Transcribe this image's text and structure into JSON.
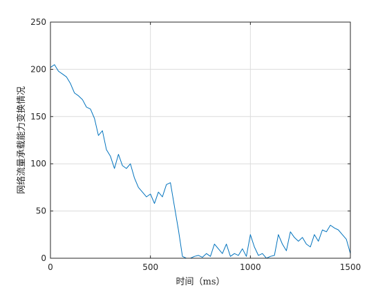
{
  "chart_data": {
    "type": "line",
    "title": "",
    "xlabel": "时间（ms）",
    "ylabel": "网络流量承载能力变换情况",
    "xlim": [
      0,
      1500
    ],
    "ylim": [
      0,
      250
    ],
    "xticks": [
      0,
      500,
      1000,
      1500
    ],
    "yticks": [
      0,
      50,
      100,
      150,
      200,
      250
    ],
    "xtick_labels": [
      "0",
      "500",
      "1000",
      "1500"
    ],
    "ytick_labels": [
      "0",
      "50",
      "100",
      "150",
      "200",
      "250"
    ],
    "grid": true,
    "legend": "none",
    "series": [
      {
        "color": "#0072BD",
        "x": [
          0,
          20,
          40,
          60,
          80,
          100,
          120,
          140,
          160,
          180,
          200,
          220,
          240,
          260,
          280,
          300,
          320,
          340,
          360,
          380,
          400,
          420,
          440,
          460,
          480,
          500,
          520,
          540,
          560,
          580,
          600,
          620,
          640,
          660,
          680,
          700,
          720,
          740,
          760,
          780,
          800,
          820,
          840,
          860,
          880,
          900,
          920,
          940,
          960,
          980,
          1000,
          1020,
          1040,
          1060,
          1080,
          1100,
          1120,
          1140,
          1160,
          1180,
          1200,
          1220,
          1240,
          1260,
          1280,
          1300,
          1320,
          1340,
          1360,
          1380,
          1400,
          1420,
          1440,
          1460,
          1480,
          1500
        ],
        "y": [
          202,
          205,
          198,
          195,
          192,
          185,
          175,
          172,
          168,
          160,
          158,
          148,
          130,
          135,
          115,
          108,
          95,
          110,
          98,
          95,
          100,
          85,
          75,
          70,
          65,
          68,
          58,
          70,
          65,
          78,
          80,
          55,
          30,
          2,
          0,
          0,
          2,
          3,
          1,
          5,
          2,
          15,
          10,
          5,
          15,
          2,
          5,
          3,
          10,
          2,
          25,
          12,
          3,
          5,
          0,
          2,
          3,
          25,
          15,
          8,
          28,
          22,
          18,
          22,
          15,
          12,
          25,
          18,
          30,
          28,
          35,
          32,
          30,
          25,
          20,
          5
        ]
      }
    ]
  }
}
